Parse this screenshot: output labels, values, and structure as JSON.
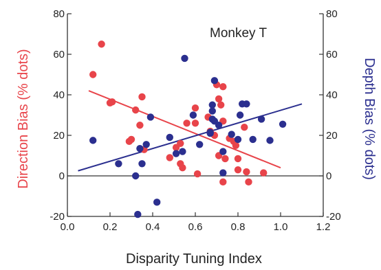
{
  "chart_data": {
    "type": "scatter",
    "annotation": "Monkey T",
    "xlabel": "Disparity Tuning Index",
    "ylabel_left": "Direction Bias (% dots)",
    "ylabel_right": "Depth Bias (% dots)",
    "xlim": [
      0.0,
      1.2
    ],
    "ylim": [
      -20,
      80
    ],
    "x_ticks": [
      "0.0",
      "0.2",
      "0.4",
      "0.6",
      "0.8",
      "1.0",
      "1.2"
    ],
    "y_ticks_left": [
      "-20",
      "0",
      "20",
      "40",
      "60",
      "80"
    ],
    "y_ticks_right": [
      "-20",
      "0",
      "20",
      "40",
      "60",
      "80"
    ],
    "zero_line": true,
    "grid": false,
    "colors": {
      "direction": "#e8444a",
      "depth": "#2b2f8f",
      "axis": "#333333"
    },
    "series": [
      {
        "axis": "left",
        "color": "#e8444a",
        "points": [
          [
            0.16,
            65
          ],
          [
            0.12,
            50
          ],
          [
            0.21,
            36.5
          ],
          [
            0.2,
            36
          ],
          [
            0.35,
            39
          ],
          [
            0.32,
            32.5
          ],
          [
            0.34,
            25
          ],
          [
            0.3,
            18
          ],
          [
            0.29,
            17
          ],
          [
            0.36,
            13
          ],
          [
            0.48,
            9
          ],
          [
            0.53,
            16
          ],
          [
            0.51,
            14
          ],
          [
            0.53,
            6
          ],
          [
            0.54,
            4
          ],
          [
            0.56,
            26
          ],
          [
            0.6,
            33.5
          ],
          [
            0.6,
            26
          ],
          [
            0.61,
            1
          ],
          [
            0.66,
            29
          ],
          [
            0.7,
            45
          ],
          [
            0.73,
            44
          ],
          [
            0.71,
            38
          ],
          [
            0.72,
            35
          ],
          [
            0.73,
            27
          ],
          [
            0.67,
            22
          ],
          [
            0.69,
            20
          ],
          [
            0.71,
            10
          ],
          [
            0.73,
            -3
          ],
          [
            0.76,
            18.5
          ],
          [
            0.78,
            17
          ],
          [
            0.79,
            15
          ],
          [
            0.8,
            8.5
          ],
          [
            0.8,
            3
          ],
          [
            0.83,
            24
          ],
          [
            0.84,
            2
          ],
          [
            0.85,
            -3
          ],
          [
            0.92,
            1.5
          ],
          [
            0.74,
            8.5
          ]
        ],
        "trend": [
          [
            0.1,
            42
          ],
          [
            1.0,
            4
          ]
        ]
      },
      {
        "axis": "right",
        "color": "#2b2f8f",
        "points": [
          [
            0.12,
            17.5
          ],
          [
            0.24,
            6
          ],
          [
            0.32,
            0
          ],
          [
            0.34,
            13.5
          ],
          [
            0.35,
            6
          ],
          [
            0.33,
            -19
          ],
          [
            0.37,
            15.5
          ],
          [
            0.39,
            29
          ],
          [
            0.42,
            -13
          ],
          [
            0.48,
            19
          ],
          [
            0.51,
            11
          ],
          [
            0.55,
            58
          ],
          [
            0.54,
            12
          ],
          [
            0.59,
            30
          ],
          [
            0.62,
            15.5
          ],
          [
            0.67,
            21.5
          ],
          [
            0.67,
            21
          ],
          [
            0.68,
            28
          ],
          [
            0.68,
            32
          ],
          [
            0.68,
            35
          ],
          [
            0.69,
            47
          ],
          [
            0.69,
            27
          ],
          [
            0.71,
            25
          ],
          [
            0.73,
            12
          ],
          [
            0.73,
            1.5
          ],
          [
            0.77,
            20.5
          ],
          [
            0.8,
            18
          ],
          [
            0.81,
            30
          ],
          [
            0.82,
            35.5
          ],
          [
            0.84,
            35.5
          ],
          [
            0.87,
            18
          ],
          [
            0.91,
            28
          ],
          [
            0.95,
            17.5
          ],
          [
            1.01,
            25.5
          ]
        ],
        "trend": [
          [
            0.05,
            2.5
          ],
          [
            1.1,
            35.5
          ]
        ]
      }
    ]
  }
}
